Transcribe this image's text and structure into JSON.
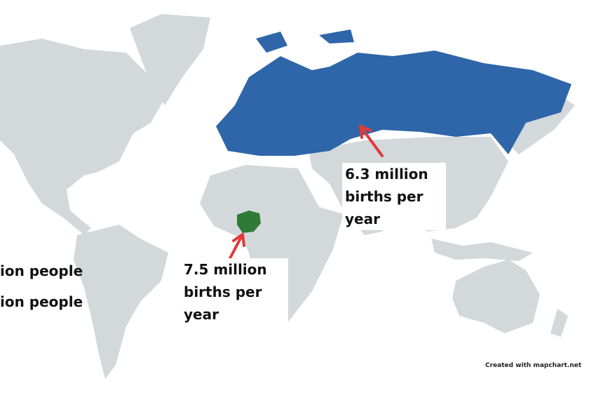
{
  "colors": {
    "land": "#d3d8db",
    "highlight_blue": "#2e66a9",
    "highlight_green": "#2f7a37",
    "arrow": "#e03b3b"
  },
  "highlighted_regions": [
    {
      "name": "Europe and Russia",
      "color": "#2e66a9"
    },
    {
      "name": "Nigeria",
      "color": "#2f7a37"
    }
  ],
  "annotations": {
    "europe": {
      "line1": "6.3 million",
      "line2": "births per",
      "line3": "year"
    },
    "nigeria": {
      "line1": "7.5 million",
      "line2": "births per",
      "line3": "year"
    }
  },
  "side_text": [
    "ion people",
    "ion people"
  ],
  "credit": "Created with mapchart.net"
}
